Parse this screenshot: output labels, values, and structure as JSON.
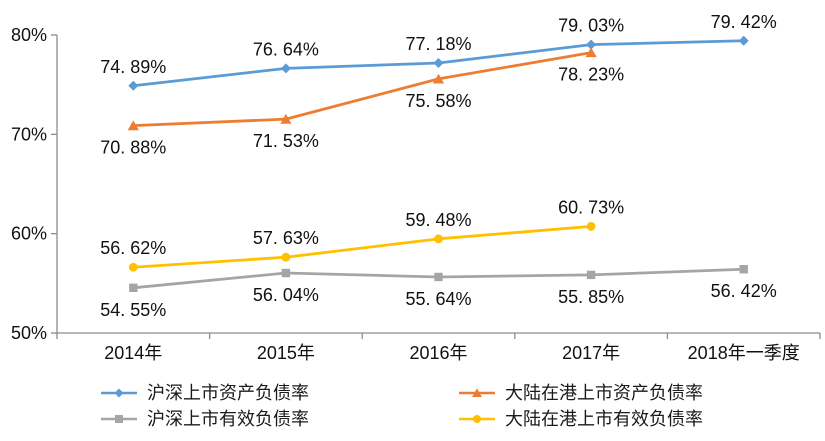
{
  "chart_data": {
    "type": "line",
    "title": "",
    "xlabel": "",
    "ylabel": "",
    "categories": [
      "2014年",
      "2015年",
      "2016年",
      "2017年",
      "2018年一季度"
    ],
    "y_axis": {
      "min": 50,
      "max": 80,
      "grid": false,
      "ticks": [
        {
          "label": "80%",
          "value": 80
        },
        {
          "label": "70%",
          "value": 70
        },
        {
          "label": "60%",
          "value": 60
        },
        {
          "label": "50%",
          "value": 50
        }
      ]
    },
    "legend_position": "bottom",
    "axis_color": "#8c8c8c",
    "label_color": "#111111",
    "series": [
      {
        "name": "沪深上市资产负债率",
        "color": "#5B9BD5",
        "marker": "diamond",
        "label_position": "above",
        "values": [
          74.89,
          76.64,
          77.18,
          79.03,
          79.42
        ],
        "labels": [
          "74. 89%",
          "76. 64%",
          "77. 18%",
          "79. 03%",
          "79. 42%"
        ]
      },
      {
        "name": "大陆在港上市资产负债率",
        "color": "#ED7D31",
        "marker": "triangle",
        "label_position": "below",
        "values": [
          70.88,
          71.53,
          75.58,
          78.23
        ],
        "labels": [
          "70. 88%",
          "71. 53%",
          "75. 58%",
          "78. 23%"
        ]
      },
      {
        "name": "沪深上市有效负债率",
        "color": "#A5A5A5",
        "marker": "square",
        "label_position": "below",
        "values": [
          54.55,
          56.04,
          55.64,
          55.85,
          56.42
        ],
        "labels": [
          "54. 55%",
          "56. 04%",
          "55. 64%",
          "55. 85%",
          "56. 42%"
        ]
      },
      {
        "name": "大陆在港上市有效负债率",
        "color": "#FFC000",
        "marker": "circle",
        "label_position": "above",
        "values": [
          56.62,
          57.63,
          59.48,
          60.73
        ],
        "labels": [
          "56. 62%",
          "57. 63%",
          "59. 48%",
          "60. 73%"
        ]
      }
    ]
  }
}
